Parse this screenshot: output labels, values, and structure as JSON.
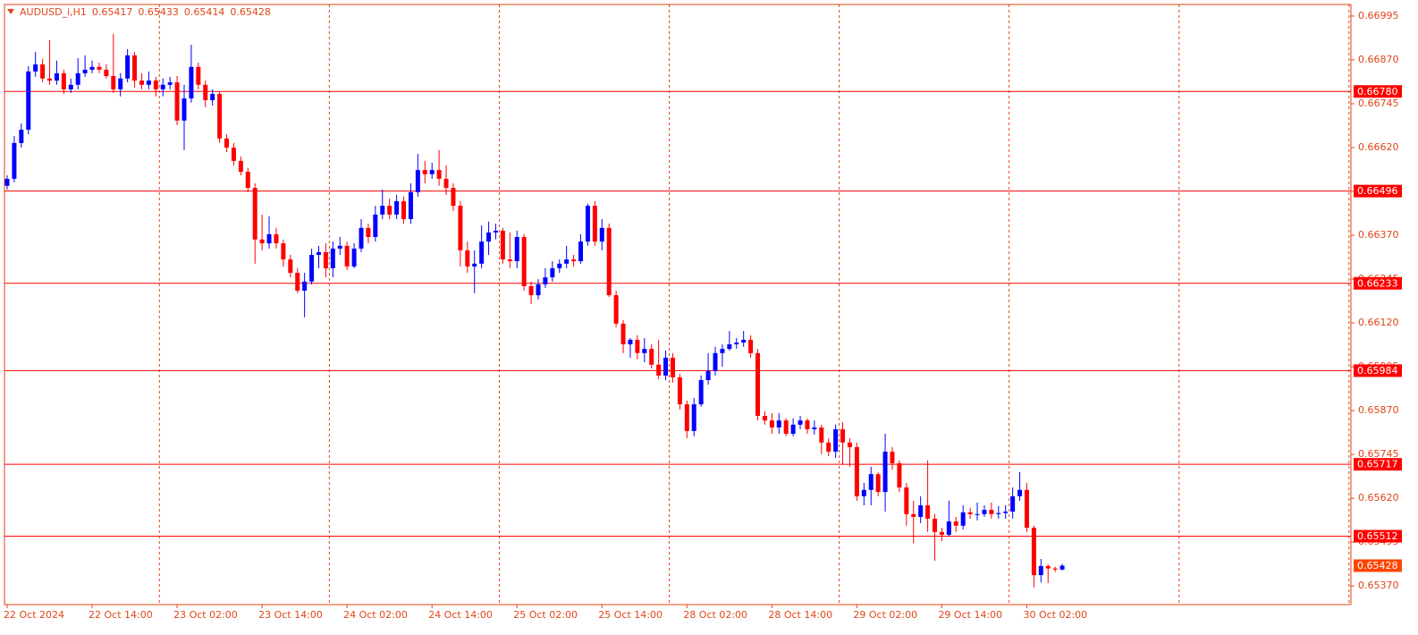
{
  "chart_data": {
    "type": "candlestick",
    "title": "AUDUSD_i,H1",
    "categories": [
      "22 Oct 2024",
      null,
      null,
      null,
      null,
      null,
      null,
      null,
      null,
      null,
      null,
      null,
      "22 Oct 14:00",
      null,
      null,
      null,
      null,
      null,
      null,
      null,
      null,
      null,
      null,
      null,
      "23 Oct 02:00",
      null,
      null,
      null,
      null,
      null,
      null,
      null,
      null,
      null,
      null,
      null,
      "23 Oct 14:00",
      null,
      null,
      null,
      null,
      null,
      null,
      null,
      null,
      null,
      null,
      null,
      "24 Oct 02:00",
      null,
      null,
      null,
      null,
      null,
      null,
      null,
      null,
      null,
      null,
      null,
      "24 Oct 14:00",
      null,
      null,
      null,
      null,
      null,
      null,
      null,
      null,
      null,
      null,
      null,
      "25 Oct 02:00",
      null,
      null,
      null,
      null,
      null,
      null,
      null,
      null,
      null,
      null,
      null,
      "25 Oct 14:00",
      null,
      null,
      null,
      null,
      null,
      null,
      null,
      null,
      null,
      null,
      null,
      "28 Oct 02:00",
      null,
      null,
      null,
      null,
      null,
      null,
      null,
      null,
      null,
      null,
      null,
      "28 Oct 14:00",
      null,
      null,
      null,
      null,
      null,
      null,
      null,
      null,
      null,
      null,
      null,
      "29 Oct 02:00",
      null,
      null,
      null,
      null,
      null,
      null,
      null,
      null,
      null,
      null,
      null,
      "29 Oct 14:00",
      null,
      null,
      null,
      null,
      null,
      null,
      null,
      null,
      null,
      null,
      null,
      "30 Oct 02:00",
      null,
      null,
      null,
      null,
      null
    ],
    "open": [
      0.66511,
      0.66531,
      0.66633,
      0.66671,
      0.66837,
      0.66857,
      0.66817,
      0.66811,
      0.66832,
      0.66786,
      0.66799,
      0.66832,
      0.66842,
      0.6685,
      0.66842,
      0.66824,
      0.66786,
      0.66817,
      0.66883,
      0.66811,
      0.66799,
      0.66811,
      0.66786,
      0.66799,
      0.66806,
      0.66697,
      0.6676,
      0.6685,
      0.66799,
      0.66755,
      0.66773,
      0.66646,
      0.6662,
      0.66582,
      0.66551,
      0.66505,
      0.66358,
      0.66347,
      0.66373,
      0.66347,
      0.66301,
      0.66263,
      0.66212,
      0.66238,
      0.66314,
      0.66322,
      0.66276,
      0.66332,
      0.6634,
      0.66281,
      0.66332,
      0.66391,
      0.66365,
      0.66429,
      0.66454,
      0.66429,
      0.66467,
      0.66416,
      0.66493,
      0.66556,
      0.66544,
      0.66556,
      0.66531,
      0.66505,
      0.66454,
      0.66327,
      0.66281,
      0.66289,
      0.66352,
      0.66378,
      0.66383,
      0.66301,
      0.66296,
      0.66365,
      0.66225,
      0.66199,
      0.6623,
      0.6625,
      0.66276,
      0.66289,
      0.66301,
      0.66296,
      0.66352,
      0.66454,
      0.66352,
      0.66391,
      0.66199,
      0.66118,
      0.66059,
      0.66072,
      0.66034,
      0.66046,
      0.66001,
      0.6597,
      0.66021,
      0.65965,
      0.65888,
      0.65812,
      0.65888,
      0.65957,
      0.65983,
      0.66034,
      0.66046,
      0.66059,
      0.66064,
      0.66072,
      0.66034,
      0.65855,
      0.65842,
      0.65822,
      0.65842,
      0.65804,
      0.6583,
      0.65842,
      0.65817,
      0.65822,
      0.65779,
      0.65753,
      0.65817,
      0.65779,
      0.65766,
      0.65626,
      0.65644,
      0.65689,
      0.65638,
      0.65753,
      0.6572,
      0.65651,
      0.65575,
      0.65567,
      0.656,
      0.65562,
      0.65524,
      0.65516,
      0.65554,
      0.65542,
      0.6558,
      0.65575,
      0.65575,
      0.65587,
      0.65575,
      0.65578,
      0.65582,
      0.65626,
      0.65644,
      0.65536,
      0.65401,
      0.65427,
      0.6542,
      0.65417
    ],
    "high": [
      0.66541,
      0.66653,
      0.66689,
      0.66852,
      0.66893,
      0.66873,
      0.66926,
      0.66868,
      0.66842,
      0.66817,
      0.66875,
      0.66883,
      0.66868,
      0.66862,
      0.66857,
      0.66944,
      0.66832,
      0.66901,
      0.66893,
      0.66832,
      0.66837,
      0.66822,
      0.66817,
      0.66822,
      0.66824,
      0.66799,
      0.66913,
      0.66862,
      0.66811,
      0.66786,
      0.66781,
      0.66658,
      0.66633,
      0.66595,
      0.66562,
      0.66518,
      0.66429,
      0.66424,
      0.66391,
      0.66358,
      0.66314,
      0.66276,
      0.66263,
      0.66332,
      0.6634,
      0.66347,
      0.66352,
      0.66365,
      0.66352,
      0.66347,
      0.66416,
      0.66403,
      0.66454,
      0.665,
      0.66475,
      0.66485,
      0.6648,
      0.66518,
      0.66602,
      0.66582,
      0.66577,
      0.66613,
      0.66569,
      0.66518,
      0.66467,
      0.66352,
      0.66327,
      0.66398,
      0.66409,
      0.66403,
      0.66391,
      0.66378,
      0.66383,
      0.66373,
      0.66238,
      0.66245,
      0.66276,
      0.66296,
      0.66301,
      0.6634,
      0.66314,
      0.66373,
      0.6646,
      0.66467,
      0.66416,
      0.66403,
      0.66212,
      0.66128,
      0.66077,
      0.66085,
      0.66077,
      0.66059,
      0.66072,
      0.66041,
      0.66034,
      0.65975,
      0.65899,
      0.65906,
      0.6597,
      0.66034,
      0.66052,
      0.66059,
      0.66097,
      0.66077,
      0.66097,
      0.66085,
      0.66046,
      0.65868,
      0.65863,
      0.65863,
      0.65848,
      0.65848,
      0.65855,
      0.65848,
      0.65842,
      0.6583,
      0.65791,
      0.6583,
      0.65837,
      0.65791,
      0.65779,
      0.65664,
      0.6571,
      0.65695,
      0.65804,
      0.65766,
      0.65728,
      0.65664,
      0.65613,
      0.65626,
      0.65728,
      0.65575,
      0.65536,
      0.65613,
      0.65567,
      0.656,
      0.65593,
      0.65608,
      0.656,
      0.65608,
      0.65598,
      0.656,
      0.65651,
      0.65695,
      0.65664,
      0.65542,
      0.65447,
      0.65432,
      0.65425,
      0.65433
    ],
    "low": [
      0.665,
      0.66521,
      0.6662,
      0.66658,
      0.66822,
      0.66806,
      0.66799,
      0.66799,
      0.66773,
      0.66776,
      0.66786,
      0.66822,
      0.66832,
      0.66832,
      0.66817,
      0.66776,
      0.66766,
      0.66806,
      0.66791,
      0.66786,
      0.66786,
      0.66766,
      0.66766,
      0.66786,
      0.66684,
      0.66613,
      0.66748,
      0.66786,
      0.66735,
      0.6674,
      0.66633,
      0.66607,
      0.66569,
      0.66541,
      0.66493,
      0.66289,
      0.66327,
      0.66332,
      0.66332,
      0.66281,
      0.6625,
      0.66205,
      0.66136,
      0.6623,
      0.66276,
      0.6625,
      0.6625,
      0.66314,
      0.66271,
      0.66276,
      0.66322,
      0.66347,
      0.66352,
      0.66416,
      0.66416,
      0.66416,
      0.66403,
      0.66403,
      0.6648,
      0.66518,
      0.66531,
      0.66511,
      0.66485,
      0.66439,
      0.66281,
      0.66263,
      0.66205,
      0.66276,
      0.66314,
      0.66358,
      0.66289,
      0.66276,
      0.66276,
      0.66212,
      0.66174,
      0.66187,
      0.6622,
      0.66238,
      0.66263,
      0.66276,
      0.66281,
      0.66289,
      0.6634,
      0.6634,
      0.66327,
      0.66194,
      0.66108,
      0.66034,
      0.66021,
      0.66016,
      0.66008,
      0.6599,
      0.6596,
      0.65957,
      0.6595,
      0.65873,
      0.65791,
      0.65797,
      0.65881,
      0.65944,
      0.6597,
      0.65995,
      0.66041,
      0.66046,
      0.66052,
      0.66021,
      0.65842,
      0.6583,
      0.65804,
      0.65804,
      0.65797,
      0.65797,
      0.65817,
      0.65804,
      0.65802,
      0.65746,
      0.6574,
      0.65735,
      0.65715,
      0.6571,
      0.65613,
      0.656,
      0.656,
      0.65626,
      0.65582,
      0.65702,
      0.65638,
      0.65542,
      0.65491,
      0.65549,
      0.65524,
      0.65442,
      0.65498,
      0.65511,
      0.65524,
      0.65531,
      0.65562,
      0.65557,
      0.65567,
      0.65562,
      0.65562,
      0.65562,
      0.65562,
      0.65613,
      0.65524,
      0.65366,
      0.6538,
      0.65378,
      0.6541,
      0.65414
    ],
    "close": [
      0.66531,
      0.66633,
      0.66671,
      0.66837,
      0.66857,
      0.66817,
      0.66811,
      0.66832,
      0.66786,
      0.66799,
      0.66832,
      0.66842,
      0.6685,
      0.66842,
      0.66824,
      0.66786,
      0.66817,
      0.66883,
      0.66811,
      0.66799,
      0.66811,
      0.66786,
      0.66799,
      0.66806,
      0.66697,
      0.6676,
      0.6685,
      0.66799,
      0.66755,
      0.66773,
      0.66646,
      0.6662,
      0.66582,
      0.66551,
      0.66505,
      0.66358,
      0.66347,
      0.66373,
      0.66347,
      0.66301,
      0.66263,
      0.66212,
      0.66238,
      0.66314,
      0.66322,
      0.66276,
      0.66332,
      0.6634,
      0.66281,
      0.66332,
      0.66391,
      0.66365,
      0.66429,
      0.66454,
      0.66429,
      0.66467,
      0.66416,
      0.66493,
      0.66556,
      0.66544,
      0.66556,
      0.66531,
      0.66505,
      0.66454,
      0.66327,
      0.66281,
      0.66289,
      0.66352,
      0.66378,
      0.66383,
      0.66301,
      0.66296,
      0.66365,
      0.66225,
      0.66199,
      0.6623,
      0.6625,
      0.66276,
      0.66289,
      0.66301,
      0.66296,
      0.66352,
      0.66454,
      0.66352,
      0.66391,
      0.66199,
      0.66118,
      0.66059,
      0.66072,
      0.66034,
      0.66046,
      0.66001,
      0.6597,
      0.66021,
      0.65965,
      0.65888,
      0.65812,
      0.65888,
      0.65957,
      0.65983,
      0.66034,
      0.66046,
      0.66059,
      0.66064,
      0.66072,
      0.66034,
      0.65855,
      0.65842,
      0.65822,
      0.65842,
      0.65804,
      0.6583,
      0.65842,
      0.65817,
      0.65822,
      0.65779,
      0.65753,
      0.65817,
      0.65779,
      0.65766,
      0.65626,
      0.65644,
      0.65689,
      0.65638,
      0.65753,
      0.6572,
      0.65651,
      0.65575,
      0.65567,
      0.656,
      0.65562,
      0.65524,
      0.65516,
      0.65554,
      0.65542,
      0.6558,
      0.65575,
      0.65575,
      0.65587,
      0.65575,
      0.65578,
      0.65582,
      0.65626,
      0.65644,
      0.65536,
      0.65401,
      0.65427,
      0.6542,
      0.65417,
      0.65428
    ],
    "up_color": "#0000ff",
    "down_color": "#ff0000",
    "ylim": [
      0.65317,
      0.67028
    ],
    "yticks": [
      0.66995,
      {
        "value": 0.6687,
        "label": "0.66870"
      },
      0.66745,
      {
        "value": 0.6662,
        "label": "0.66620"
      },
      0.66495,
      {
        "value": 0.6637,
        "label": "0.66370"
      },
      0.66245,
      {
        "value": 0.6612,
        "label": "0.66120"
      },
      0.65995,
      {
        "value": 0.6587,
        "label": "0.65870"
      },
      0.65745,
      {
        "value": 0.6562,
        "label": "0.65620"
      },
      0.65495,
      {
        "value": 0.6537,
        "label": "0.65370"
      }
    ],
    "levels": [
      {
        "value": 0.6678,
        "label": "0.66780"
      },
      0.66496,
      0.66233,
      0.65984,
      0.65717,
      0.65512
    ],
    "level_color": "#ff0000",
    "price_label_color": "#ff4500",
    "period_separators": true
  }
}
